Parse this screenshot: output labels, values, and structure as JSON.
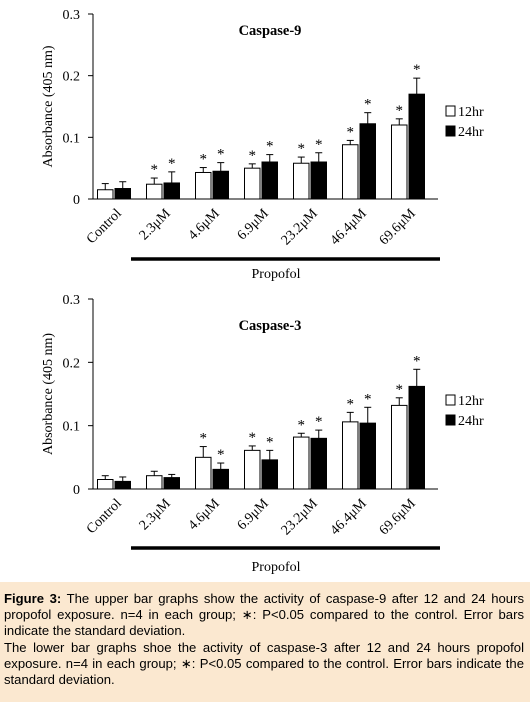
{
  "caption": {
    "label": "Figure 3:",
    "paragraph1": " The upper bar graphs show the activity of caspase-9 after 12 and 24 hours propofol exposure. n=4 in each group; ∗: P<0.05 compared to the control. Error bars indicate the standard deviation.",
    "paragraph2": "The lower bar graphs shoe the activity of caspase-3 after 12 and 24 hours propofol exposure. n=4 in each group; ∗: P<0.05 compared to the control. Error bars indicate the standard deviation."
  },
  "colors": {
    "series_12hr": "#ffffff",
    "series_24hr": "#000000",
    "caption_bg": "#fbe8d0"
  },
  "chart_data": [
    {
      "type": "bar",
      "title": "Caspase-9",
      "ylabel": "Absorbance (405 nm)",
      "xlabel": "",
      "group_label": "Propofol",
      "ylim": [
        0,
        0.3
      ],
      "yticks": [
        "0",
        "0.1",
        "0.2",
        "0.3"
      ],
      "categories": [
        "Control",
        "2.3μM",
        "4.6μM",
        "6.9μM",
        "23.2μM",
        "46.4μM",
        "69.6μM"
      ],
      "series": [
        {
          "name": "12hr",
          "values": [
            0.015,
            0.024,
            0.043,
            0.05,
            0.058,
            0.088,
            0.12
          ],
          "errors": [
            0.01,
            0.01,
            0.008,
            0.007,
            0.01,
            0.007,
            0.01
          ],
          "significant": [
            false,
            true,
            true,
            true,
            true,
            true,
            true
          ]
        },
        {
          "name": "24hr",
          "values": [
            0.017,
            0.026,
            0.045,
            0.06,
            0.06,
            0.122,
            0.17
          ],
          "errors": [
            0.011,
            0.018,
            0.014,
            0.012,
            0.015,
            0.018,
            0.026
          ],
          "significant": [
            false,
            true,
            true,
            true,
            true,
            true,
            true
          ]
        }
      ],
      "legend_position": "right"
    },
    {
      "type": "bar",
      "title": "Caspase-3",
      "ylabel": "Absorbance (405 nm)",
      "xlabel": "",
      "group_label": "Propofol",
      "ylim": [
        0,
        0.3
      ],
      "yticks": [
        "0",
        "0.1",
        "0.2",
        "0.3"
      ],
      "categories": [
        "Control",
        "2.3μM",
        "4.6μM",
        "6.9μM",
        "23.2μM",
        "46.4μM",
        "69.6μM"
      ],
      "series": [
        {
          "name": "12hr",
          "values": [
            0.015,
            0.021,
            0.05,
            0.061,
            0.082,
            0.106,
            0.132
          ],
          "errors": [
            0.006,
            0.007,
            0.017,
            0.007,
            0.006,
            0.015,
            0.012
          ],
          "significant": [
            false,
            false,
            true,
            true,
            true,
            true,
            true
          ]
        },
        {
          "name": "24hr",
          "values": [
            0.012,
            0.018,
            0.031,
            0.046,
            0.08,
            0.104,
            0.162
          ],
          "errors": [
            0.007,
            0.005,
            0.01,
            0.015,
            0.013,
            0.025,
            0.027
          ],
          "significant": [
            false,
            false,
            true,
            true,
            true,
            true,
            true
          ]
        }
      ],
      "legend_position": "right"
    }
  ]
}
